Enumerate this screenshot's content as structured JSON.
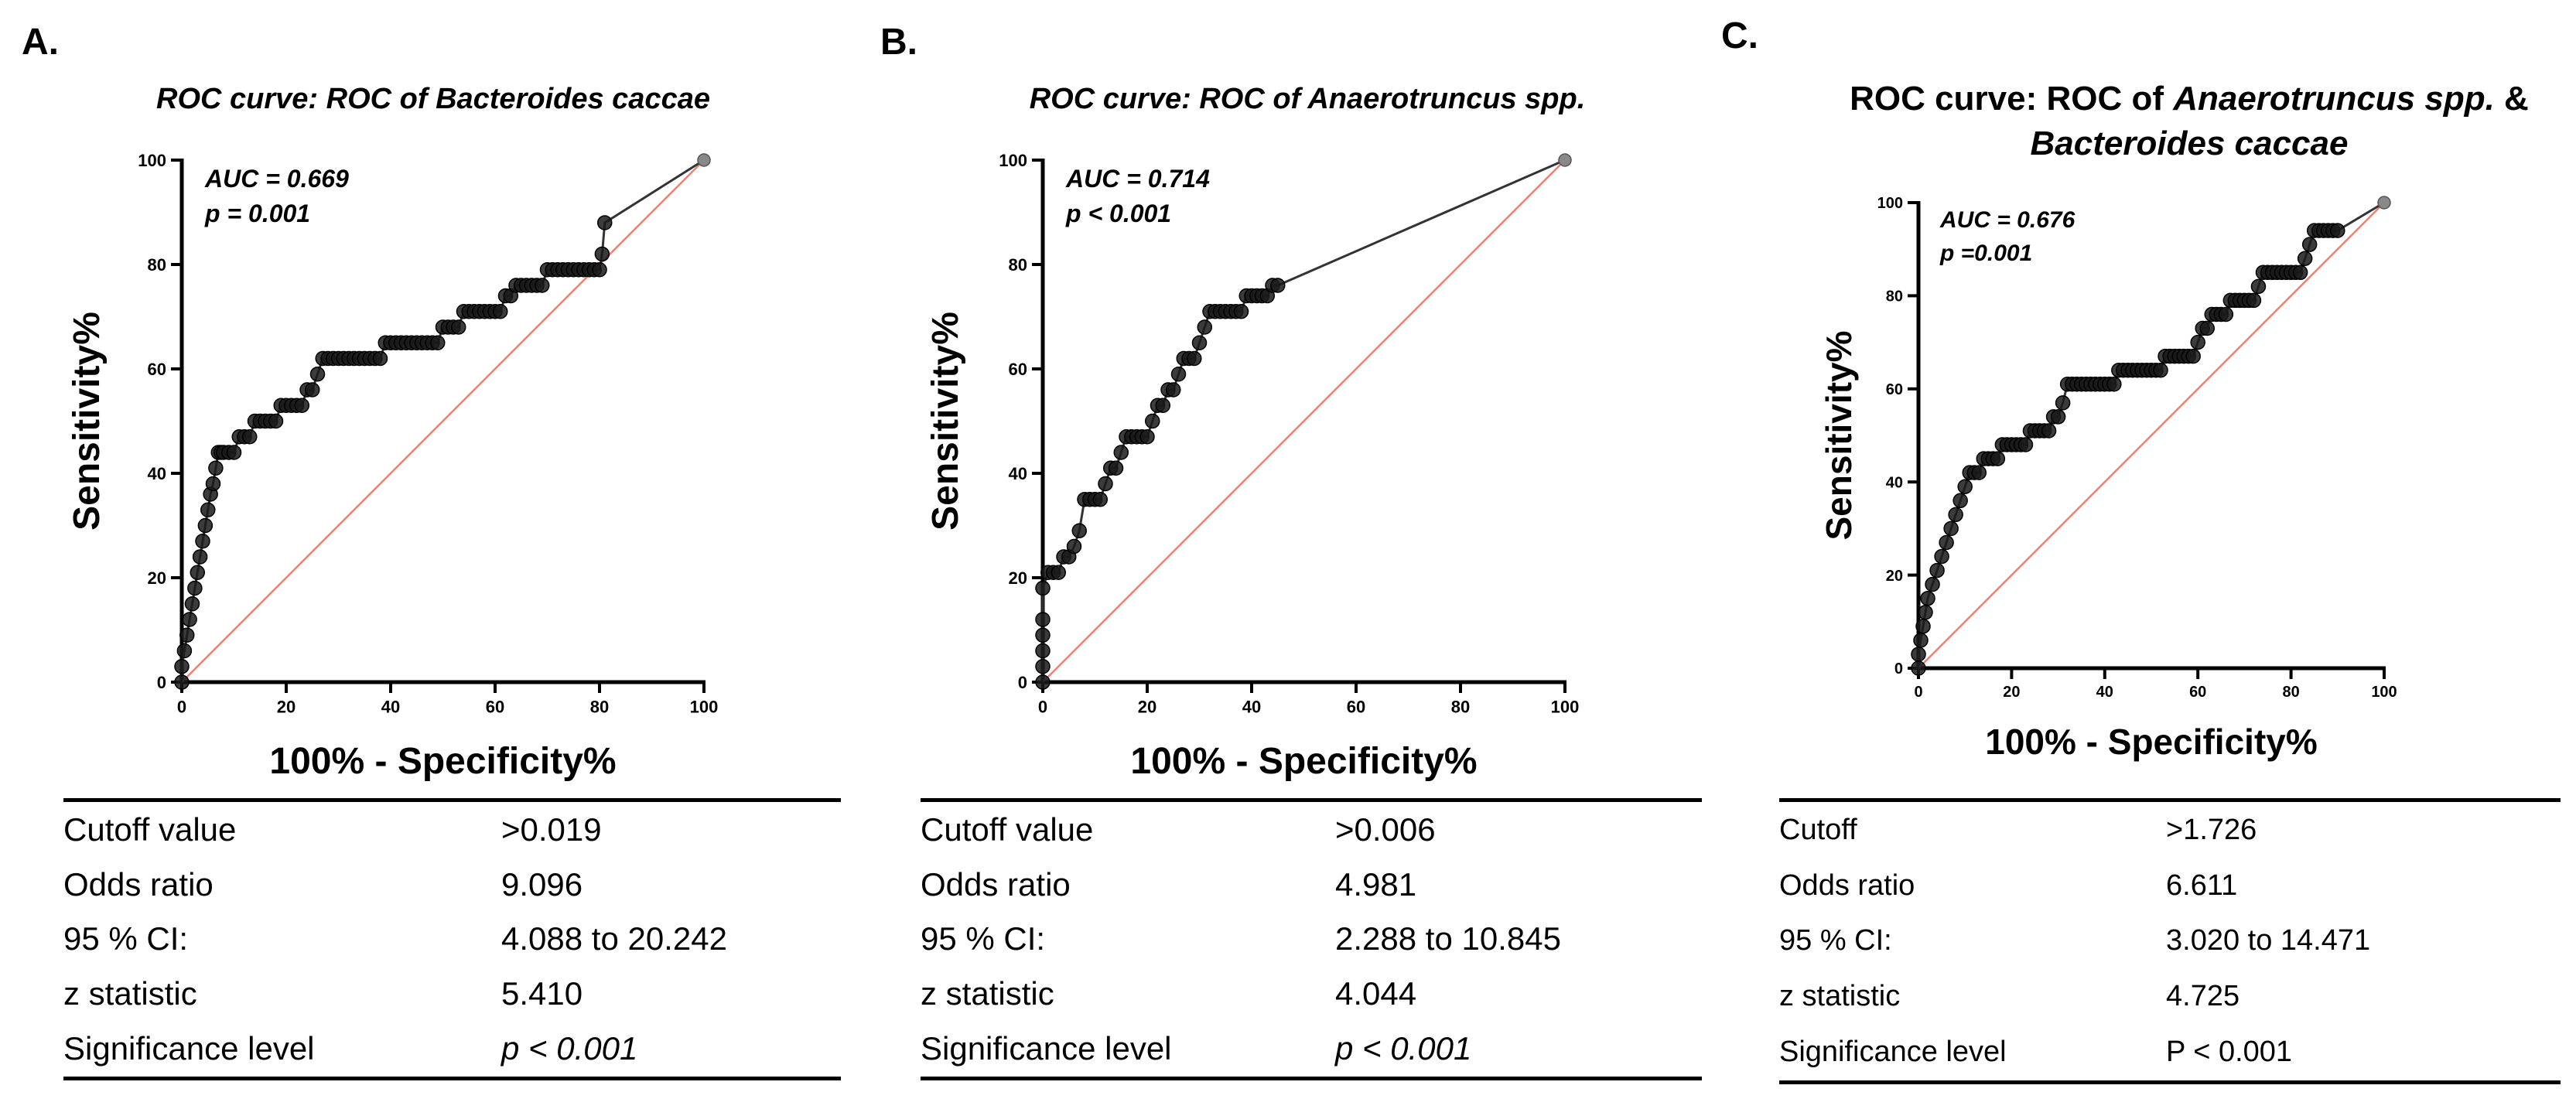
{
  "chart_data": [
    {
      "type": "line",
      "panel_label": "A.",
      "title_parts": [
        {
          "text": "ROC curve: ROC of Bacteroides caccae",
          "italic": true
        }
      ],
      "xlabel": "100% - Specificity%",
      "ylabel": "Sensitivity%",
      "xlim": [
        0,
        100
      ],
      "ylim": [
        0,
        100
      ],
      "x_ticks": [
        "0",
        "20",
        "40",
        "60",
        "80",
        "100"
      ],
      "y_ticks": [
        "0",
        "20",
        "40",
        "60",
        "80",
        "100"
      ],
      "grid": false,
      "annotation": {
        "lines": [
          "AUC = 0.669",
          "p = 0.001"
        ],
        "position": "top-left"
      },
      "series": [
        {
          "role": "roc",
          "x": [
            0,
            0,
            0.5,
            1,
            1.5,
            2,
            2.5,
            3,
            3.5,
            4,
            4.5,
            5,
            5.5,
            6,
            6.5,
            7,
            7.5,
            8,
            9,
            10,
            11,
            12,
            13,
            14,
            15,
            16,
            17,
            18,
            19,
            20,
            21,
            22,
            23,
            24,
            25,
            26,
            27,
            28,
            29,
            30,
            31,
            32,
            33,
            34,
            35,
            36,
            37,
            38,
            39,
            40,
            41,
            42,
            43,
            44,
            45,
            46,
            47,
            48,
            49,
            50,
            51,
            52,
            53,
            54,
            55,
            56,
            57,
            58,
            59,
            60,
            61,
            62,
            63,
            64,
            65,
            66,
            67,
            68,
            69,
            70,
            71,
            72,
            73,
            74,
            75,
            76,
            77,
            78,
            79,
            80,
            80.5,
            81,
            100
          ],
          "y": [
            0,
            3,
            6,
            9,
            12,
            15,
            18,
            21,
            24,
            27,
            30,
            33,
            36,
            38,
            41,
            44,
            44,
            44,
            44,
            44,
            47,
            47,
            47,
            50,
            50,
            50,
            50,
            50,
            53,
            53,
            53,
            53,
            53,
            56,
            56,
            59,
            62,
            62,
            62,
            62,
            62,
            62,
            62,
            62,
            62,
            62,
            62,
            62,
            65,
            65,
            65,
            65,
            65,
            65,
            65,
            65,
            65,
            65,
            65,
            68,
            68,
            68,
            68,
            71,
            71,
            71,
            71,
            71,
            71,
            71,
            71,
            74,
            74,
            76,
            76,
            76,
            76,
            76,
            76,
            79,
            79,
            79,
            79,
            79,
            79,
            79,
            79,
            79,
            79,
            79,
            82,
            88,
            100
          ]
        },
        {
          "role": "reference",
          "x": [
            0,
            100
          ],
          "y": [
            0,
            100
          ]
        }
      ],
      "table": {
        "rows": [
          {
            "label": "Cutoff value",
            "value": ">0.019"
          },
          {
            "label": "Odds ratio",
            "value": "9.096"
          },
          {
            "label": "95 % CI:",
            "value": "4.088 to 20.242"
          },
          {
            "label": "z statistic",
            "value": "5.410"
          },
          {
            "label": "Significance level",
            "value": "p < 0.001",
            "italic": true
          }
        ]
      }
    },
    {
      "type": "line",
      "panel_label": "B.",
      "title_parts": [
        {
          "text": "ROC curve: ROC of Anaerotruncus spp.",
          "italic": true
        }
      ],
      "xlabel": "100% - Specificity%",
      "ylabel": "Sensitivity%",
      "xlim": [
        0,
        100
      ],
      "ylim": [
        0,
        100
      ],
      "x_ticks": [
        "0",
        "20",
        "40",
        "60",
        "80",
        "100"
      ],
      "y_ticks": [
        "0",
        "20",
        "40",
        "60",
        "80",
        "100"
      ],
      "grid": false,
      "annotation": {
        "lines": [
          "AUC = 0.714",
          "p < 0.001"
        ],
        "position": "top-left"
      },
      "series": [
        {
          "role": "roc",
          "x": [
            0,
            0,
            0,
            0,
            0,
            0,
            1,
            2,
            3,
            4,
            5,
            6,
            7,
            8,
            9,
            10,
            11,
            12,
            13,
            14,
            15,
            16,
            17,
            18,
            19,
            20,
            21,
            22,
            23,
            24,
            25,
            26,
            27,
            28,
            29,
            30,
            31,
            32,
            33,
            34,
            35,
            36,
            37,
            38,
            39,
            40,
            41,
            42,
            43,
            44,
            45,
            100
          ],
          "y": [
            0,
            3,
            6,
            9,
            12,
            18,
            21,
            21,
            21,
            24,
            24,
            26,
            29,
            35,
            35,
            35,
            35,
            38,
            41,
            41,
            44,
            47,
            47,
            47,
            47,
            47,
            50,
            53,
            53,
            56,
            56,
            59,
            62,
            62,
            62,
            65,
            68,
            71,
            71,
            71,
            71,
            71,
            71,
            71,
            74,
            74,
            74,
            74,
            74,
            76,
            76,
            100
          ]
        },
        {
          "role": "reference",
          "x": [
            0,
            100
          ],
          "y": [
            0,
            100
          ]
        }
      ],
      "table": {
        "rows": [
          {
            "label": "Cutoff value",
            "value": ">0.006"
          },
          {
            "label": "Odds ratio",
            "value": "4.981"
          },
          {
            "label": "95 % CI:",
            "value": "2.288 to 10.845"
          },
          {
            "label": "z statistic",
            "value": "4.044"
          },
          {
            "label": "Significance level",
            "value": "p < 0.001",
            "italic": true
          }
        ]
      }
    },
    {
      "type": "line",
      "panel_label": "C.",
      "title_parts": [
        {
          "text": "ROC curve: ROC of ",
          "italic": false
        },
        {
          "text": "Anaerotruncus spp.",
          "italic": true
        },
        {
          "text": " &",
          "italic": false
        },
        {
          "text": "Bacteroides caccae",
          "italic": true,
          "new_line": true
        }
      ],
      "xlabel": "100% - Specificity%",
      "ylabel": "Sensitivity%",
      "xlim": [
        0,
        100
      ],
      "ylim": [
        0,
        100
      ],
      "x_ticks": [
        "0",
        "20",
        "40",
        "60",
        "80",
        "100"
      ],
      "y_ticks": [
        "0",
        "20",
        "40",
        "60",
        "80",
        "100"
      ],
      "grid": false,
      "annotation": {
        "lines": [
          "AUC = 0.676",
          "p =0.001"
        ],
        "position": "top-left"
      },
      "series": [
        {
          "role": "roc",
          "x": [
            0,
            0,
            0.5,
            1,
            1.5,
            2,
            3,
            4,
            5,
            6,
            7,
            8,
            9,
            10,
            11,
            12,
            13,
            14,
            15,
            16,
            17,
            18,
            19,
            20,
            21,
            22,
            23,
            24,
            25,
            26,
            27,
            28,
            29,
            30,
            31,
            32,
            33,
            34,
            35,
            36,
            37,
            38,
            39,
            40,
            41,
            42,
            43,
            44,
            45,
            46,
            47,
            48,
            49,
            50,
            51,
            52,
            53,
            54,
            55,
            56,
            57,
            58,
            59,
            60,
            61,
            62,
            63,
            64,
            65,
            66,
            67,
            68,
            69,
            70,
            71,
            72,
            73,
            74,
            75,
            76,
            77,
            78,
            79,
            80,
            81,
            82,
            83,
            84,
            85,
            86,
            87,
            88,
            89,
            90,
            100
          ],
          "y": [
            0,
            3,
            6,
            9,
            12,
            15,
            18,
            21,
            24,
            27,
            30,
            33,
            36,
            39,
            42,
            42,
            42,
            45,
            45,
            45,
            45,
            48,
            48,
            48,
            48,
            48,
            48,
            51,
            51,
            51,
            51,
            51,
            54,
            54,
            57,
            61,
            61,
            61,
            61,
            61,
            61,
            61,
            61,
            61,
            61,
            61,
            64,
            64,
            64,
            64,
            64,
            64,
            64,
            64,
            64,
            64,
            67,
            67,
            67,
            67,
            67,
            67,
            67,
            70,
            73,
            73,
            76,
            76,
            76,
            76,
            79,
            79,
            79,
            79,
            79,
            79,
            82,
            85,
            85,
            85,
            85,
            85,
            85,
            85,
            85,
            85,
            88,
            91,
            94,
            94,
            94,
            94,
            94,
            94,
            100
          ]
        },
        {
          "role": "reference",
          "x": [
            0,
            100
          ],
          "y": [
            0,
            100
          ]
        }
      ],
      "table": {
        "rows": [
          {
            "label": "Cutoff",
            "value": ">1.726"
          },
          {
            "label": "Odds ratio",
            "value": "6.611"
          },
          {
            "label": "95 % CI:",
            "value": "3.020 to 14.471"
          },
          {
            "label": "z statistic",
            "value": "4.725"
          },
          {
            "label": "Significance level",
            "value": "P < 0.001",
            "italic": false
          }
        ]
      }
    }
  ]
}
